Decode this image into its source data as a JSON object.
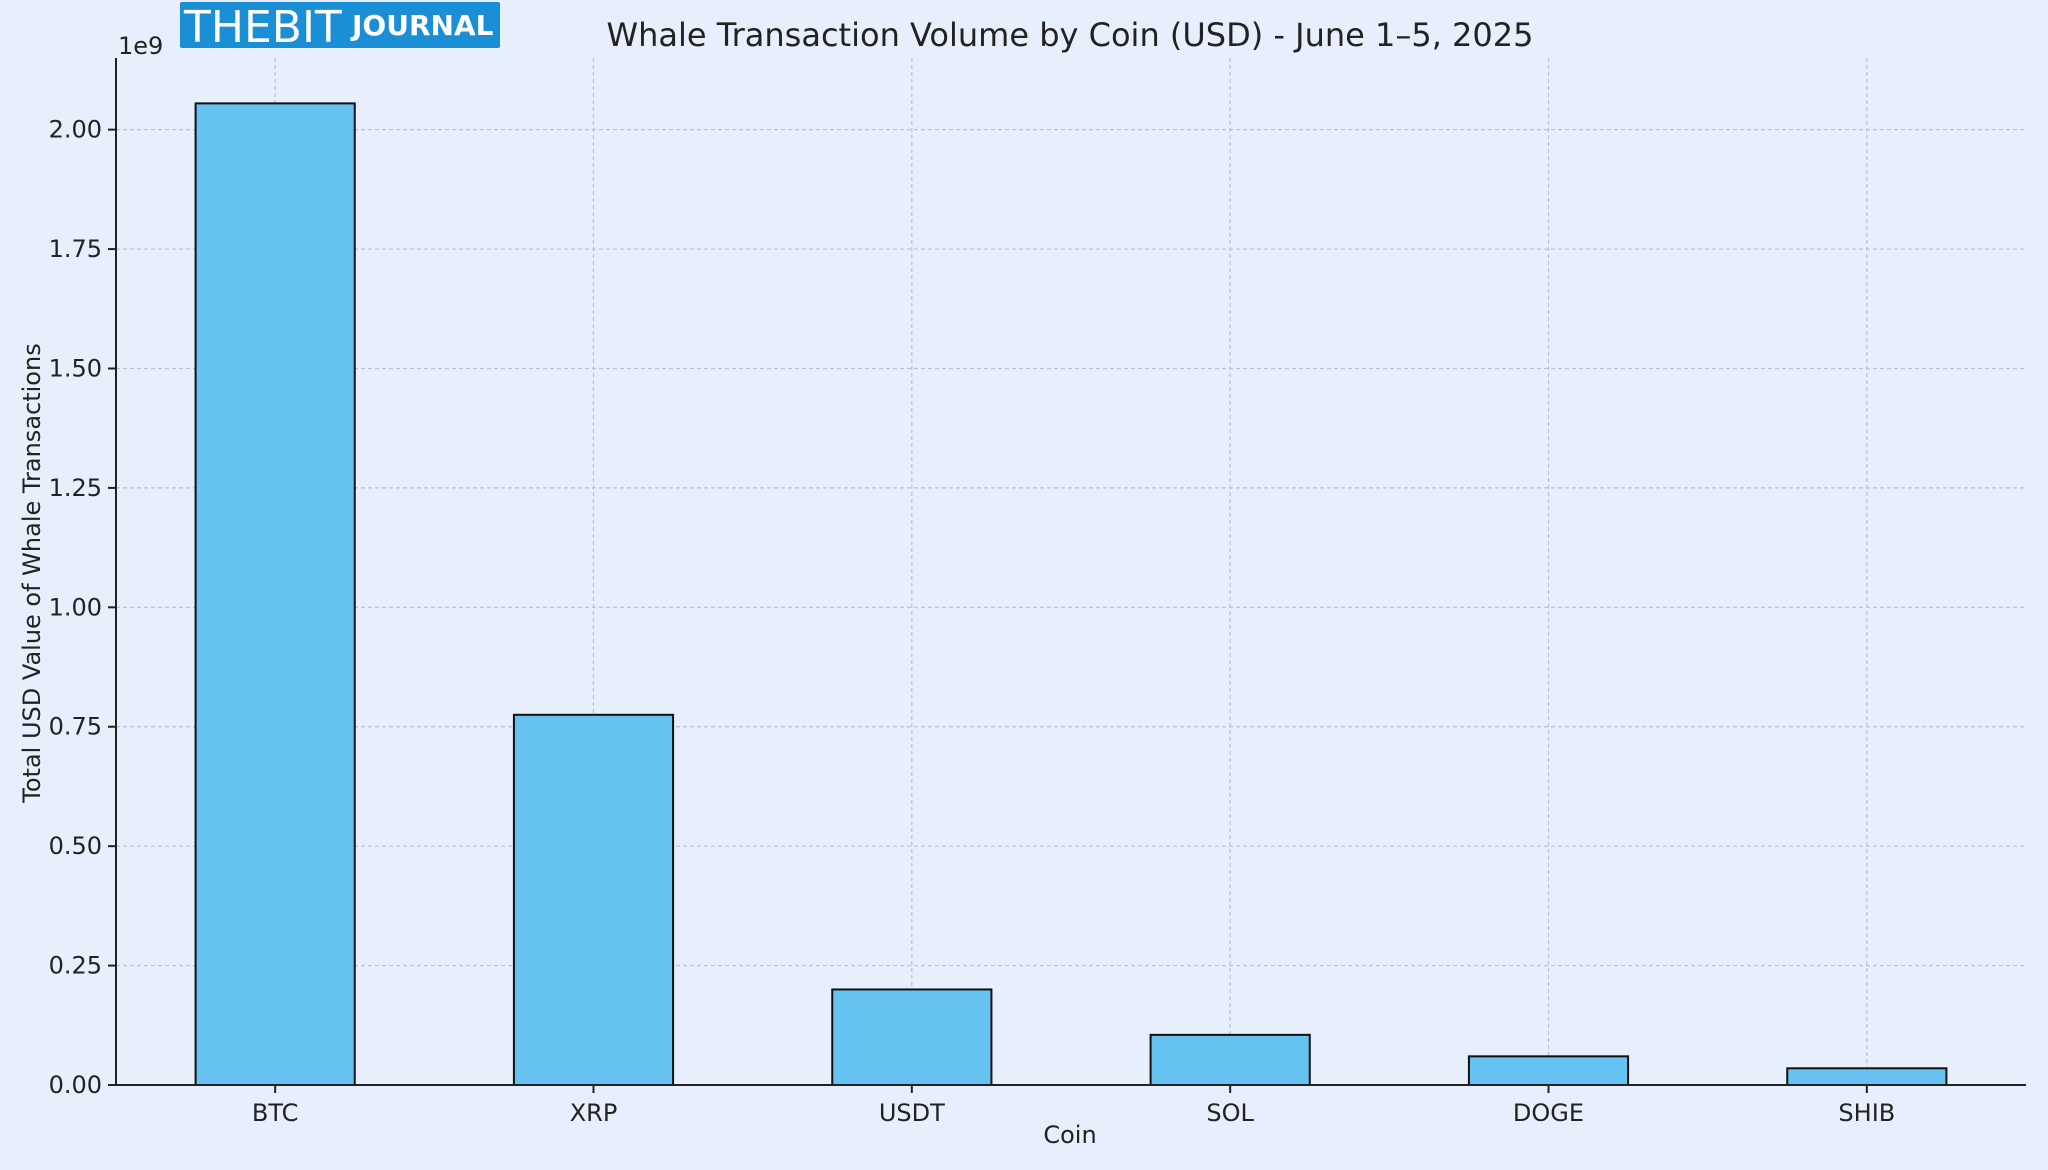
{
  "logo": {
    "part1": "THEBIT",
    "part2": "JOURNAL",
    "color": "#1b8fd6"
  },
  "chart_data": {
    "type": "bar",
    "title": "Whale Transaction Volume by Coin (USD) - June 1–5, 2025",
    "xlabel": "Coin",
    "ylabel": "Total USD Value of Whale Transactions",
    "y_multiplier_label": "1e9",
    "categories": [
      "BTC",
      "XRP",
      "USDT",
      "SOL",
      "DOGE",
      "SHIB"
    ],
    "values": [
      2.055,
      0.775,
      0.2,
      0.105,
      0.06,
      0.035
    ],
    "y_unit_scale": 1000000000,
    "ylim": [
      0,
      2.15
    ],
    "yticks": [
      0.0,
      0.25,
      0.5,
      0.75,
      1.0,
      1.25,
      1.5,
      1.75,
      2.0
    ],
    "ytick_labels": [
      "0.00",
      "0.25",
      "0.50",
      "0.75",
      "1.00",
      "1.25",
      "1.50",
      "1.75",
      "2.00"
    ],
    "grid": true,
    "bar_color": "#66c2f0",
    "edge_color": "#111111"
  }
}
